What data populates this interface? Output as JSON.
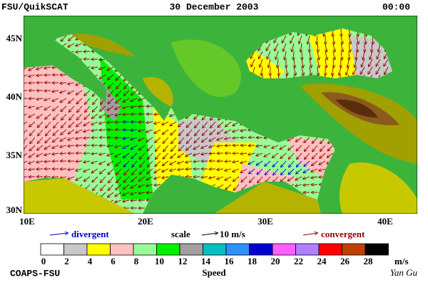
{
  "header": {
    "left": "FSU/QuikSCAT",
    "center": "30 December 2003",
    "right": "00:00"
  },
  "map": {
    "lat_labels": [
      "45N",
      "40N",
      "35N",
      "30N"
    ],
    "lon_labels": [
      "10E",
      "20E",
      "30E",
      "40E"
    ]
  },
  "legend": {
    "divergent": "divergent",
    "scale": "scale",
    "scale_value": "10 m/s",
    "convergent": "convergent"
  },
  "colorbar": {
    "ticks": [
      0,
      2,
      4,
      6,
      8,
      10,
      12,
      14,
      16,
      18,
      20,
      22,
      24,
      26,
      28
    ],
    "colors": [
      "#ffffff",
      "#c8c8c8",
      "#ffff00",
      "#ffc0c0",
      "#98fb98",
      "#00f000",
      "#a0a0a0",
      "#00c0c0",
      "#3090ff",
      "#0000d0",
      "#ff60ff",
      "#b080ff",
      "#ff0000",
      "#c04000",
      "#000000"
    ],
    "unit": "m/s",
    "label": "Speed"
  },
  "footer": {
    "left": "COAPS-FSU",
    "right": "Yan Gu"
  }
}
